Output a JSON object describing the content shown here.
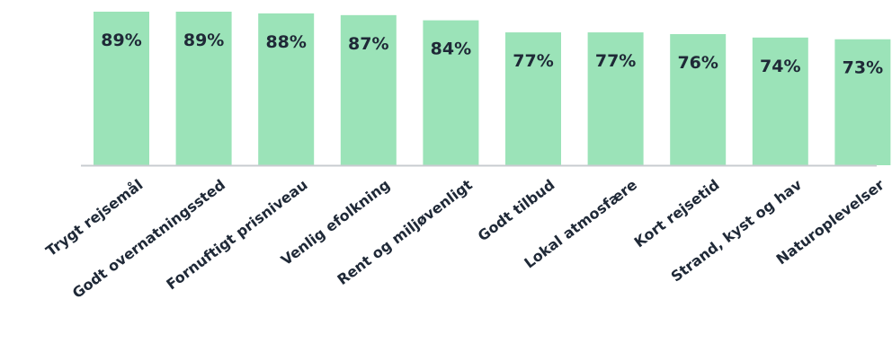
{
  "chart_data": {
    "type": "bar",
    "categories": [
      "Trygt rejsemål",
      "Godt overnatningssted",
      "Fornuftigt prisniveau",
      "Venlig efolkning",
      "Rent og miljøvenligt",
      "Godt tilbud",
      "Lokal atmosfære",
      "Kort rejsetid",
      "Strand, kyst og hav",
      "Naturoplevelser"
    ],
    "values": [
      89,
      89,
      88,
      87,
      84,
      77,
      77,
      76,
      74,
      73
    ],
    "value_labels": [
      "89%",
      "89%",
      "88%",
      "87%",
      "84%",
      "77%",
      "77%",
      "76%",
      "74%",
      "73%"
    ],
    "title": "",
    "xlabel": "",
    "ylabel": "",
    "ylim": [
      0,
      89
    ],
    "grid": false,
    "legend": "none",
    "bar_color": "#9be3b8",
    "axis_color": "#c8ccd0",
    "text_color": "#1f2937"
  }
}
